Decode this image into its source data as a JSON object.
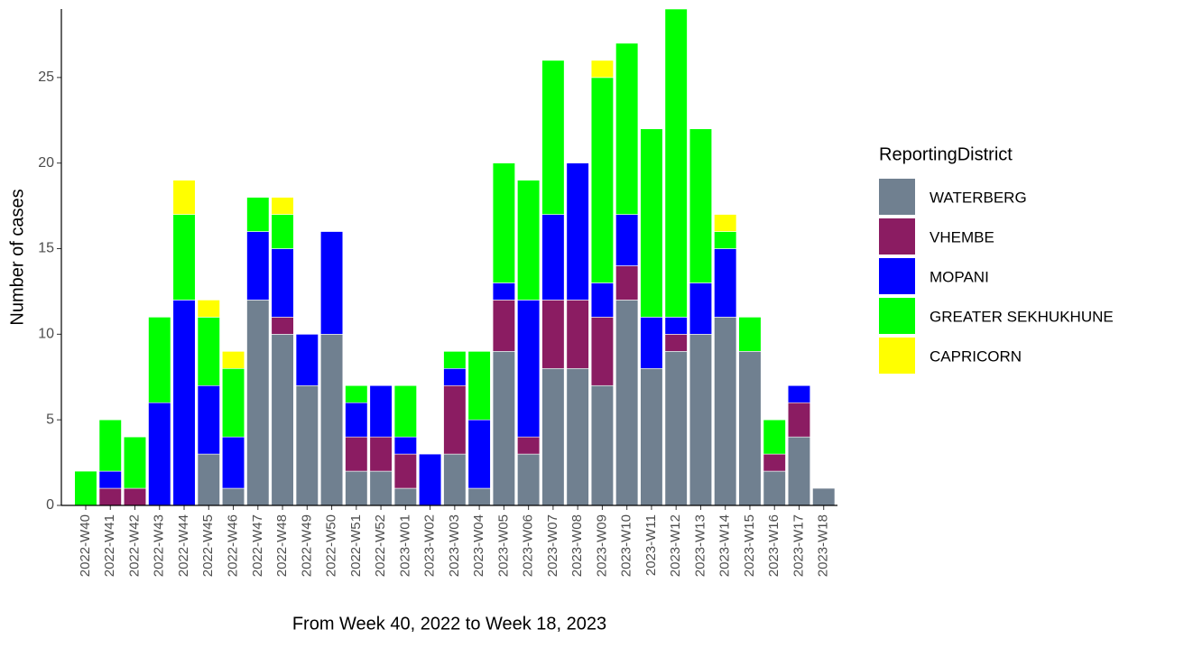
{
  "chart_data": {
    "type": "stacked-bar",
    "x_label": "From Week 40, 2022 to Week 18, 2023",
    "y_label": "Number of cases",
    "legend_title": "ReportingDistrict",
    "categories": [
      "2022-W40",
      "2022-W41",
      "2022-W42",
      "2022-W43",
      "2022-W44",
      "2022-W45",
      "2022-W46",
      "2022-W47",
      "2022-W48",
      "2022-W49",
      "2022-W50",
      "2022-W51",
      "2022-W52",
      "2023-W01",
      "2023-W02",
      "2023-W03",
      "2023-W04",
      "2023-W05",
      "2023-W06",
      "2023-W07",
      "2023-W08",
      "2023-W09",
      "2023-W10",
      "2023-W11",
      "2023-W12",
      "2023-W13",
      "2023-W14",
      "2023-W15",
      "2023-W16",
      "2023-W17",
      "2023-W18"
    ],
    "series": [
      {
        "name": "WATERBERG",
        "color": "#708090",
        "values": [
          0,
          0,
          0,
          0,
          0,
          3,
          1,
          12,
          10,
          7,
          10,
          2,
          2,
          1,
          0,
          3,
          1,
          9,
          3,
          8,
          8,
          7,
          12,
          8,
          9,
          10,
          11,
          9,
          2,
          4,
          1
        ]
      },
      {
        "name": "VHEMBE",
        "color": "#8B1C62",
        "values": [
          0,
          1,
          1,
          0,
          0,
          0,
          0,
          0,
          1,
          0,
          0,
          2,
          2,
          2,
          0,
          4,
          0,
          3,
          1,
          4,
          4,
          4,
          2,
          0,
          1,
          0,
          0,
          0,
          1,
          2,
          0
        ]
      },
      {
        "name": "MOPANI",
        "color": "#0000FF",
        "values": [
          0,
          1,
          0,
          6,
          12,
          4,
          3,
          4,
          4,
          3,
          6,
          2,
          3,
          1,
          3,
          1,
          4,
          1,
          8,
          5,
          8,
          2,
          3,
          3,
          1,
          3,
          4,
          0,
          0,
          1,
          0
        ]
      },
      {
        "name": "GREATER SEKHUKHUNE",
        "color": "#00FF00",
        "values": [
          2,
          3,
          3,
          5,
          5,
          4,
          4,
          2,
          2,
          0,
          0,
          1,
          0,
          3,
          0,
          1,
          4,
          7,
          7,
          9,
          0,
          12,
          10,
          11,
          18,
          9,
          1,
          2,
          2,
          0,
          0
        ]
      },
      {
        "name": "CAPRICORN",
        "color": "#FFFF00",
        "values": [
          0,
          0,
          0,
          0,
          2,
          1,
          1,
          0,
          1,
          0,
          0,
          0,
          0,
          0,
          0,
          0,
          0,
          0,
          0,
          0,
          0,
          1,
          0,
          0,
          0,
          0,
          1,
          0,
          0,
          0,
          0
        ]
      }
    ],
    "ylim": [
      0,
      29
    ],
    "yticks": [
      0,
      5,
      10,
      15,
      20,
      25
    ],
    "grid": false,
    "legend": "right"
  }
}
